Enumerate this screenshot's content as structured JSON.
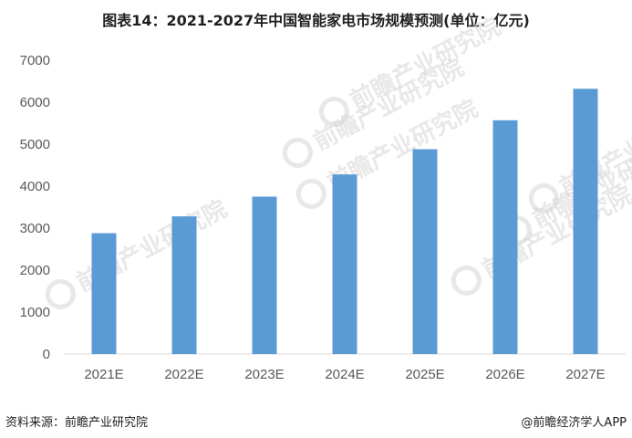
{
  "chart_data": {
    "type": "bar",
    "title": "图表14：2021-2027年中国智能家电市场规模预测(单位：亿元)",
    "categories": [
      "2021E",
      "2022E",
      "2023E",
      "2024E",
      "2025E",
      "2026E",
      "2027E"
    ],
    "values": [
      2880,
      3280,
      3750,
      4280,
      4880,
      5570,
      6320
    ],
    "ylim": [
      0,
      7000
    ],
    "yticks": [
      0,
      1000,
      2000,
      3000,
      4000,
      5000,
      6000,
      7000
    ],
    "xlabel": "",
    "ylabel": "",
    "grid": false,
    "bar_color": "#5b9bd5",
    "axis_color": "#d9d9d9"
  },
  "watermark": "前瞻产业研究院",
  "footer": {
    "source": "资料来源：前瞻产业研究院",
    "credit": "@前瞻经济学人APP"
  }
}
